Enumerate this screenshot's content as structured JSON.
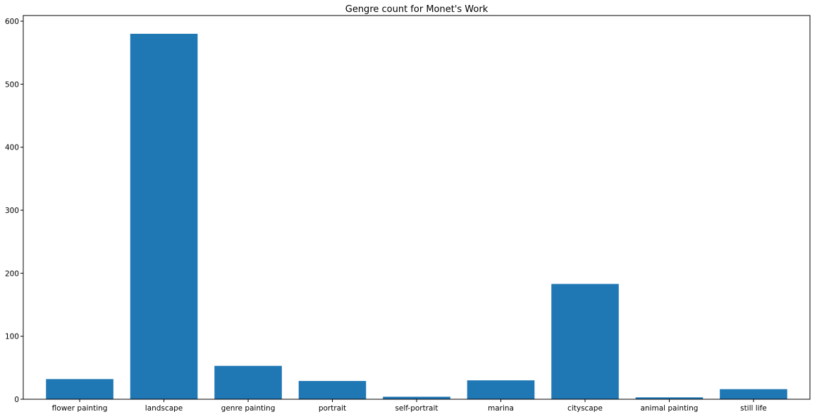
{
  "chart_data": {
    "type": "bar",
    "title": "Gengre count for Monet's Work",
    "xlabel": "",
    "ylabel": "",
    "categories": [
      "flower painting",
      "landscape",
      "genre painting",
      "portrait",
      "self-portrait",
      "marina",
      "cityscape",
      "animal painting",
      "still life"
    ],
    "values": [
      32,
      580,
      53,
      29,
      4,
      30,
      183,
      3,
      16
    ],
    "ylim": [
      0,
      609
    ],
    "yticks": [
      0,
      100,
      200,
      300,
      400,
      500,
      600
    ],
    "grid": false,
    "legend": "none",
    "bar_color": "#1f77b4"
  }
}
